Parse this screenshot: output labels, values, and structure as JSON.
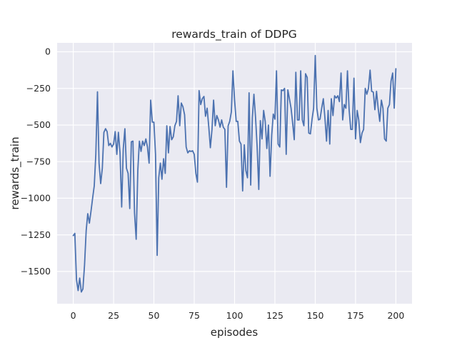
{
  "colors": {
    "figure_bg": "#ffffff",
    "axes_bg": "#eaeaf2",
    "grid": "#ffffff",
    "text": "#262626",
    "line": "#4c72b0"
  },
  "chart_data": {
    "type": "line",
    "title": "rewards_train of DDPG",
    "xlabel": "episodes",
    "ylabel": "rewards_train",
    "x_ticks": [
      0,
      25,
      50,
      75,
      100,
      125,
      150,
      175,
      200
    ],
    "y_ticks": [
      0,
      -250,
      -500,
      -750,
      -1000,
      -1250,
      -1500
    ],
    "xlim": [
      -10,
      210
    ],
    "ylim": [
      -1720,
      61
    ],
    "grid": true,
    "legend": "none",
    "series": [
      {
        "name": "rewards_train",
        "color": "#4c72b0",
        "x_start": 0,
        "x_step": 1,
        "values": [
          -1255,
          -1240,
          -1555,
          -1630,
          -1545,
          -1640,
          -1620,
          -1455,
          -1220,
          -1105,
          -1170,
          -1090,
          -1000,
          -915,
          -700,
          -273,
          -760,
          -900,
          -795,
          -550,
          -525,
          -545,
          -640,
          -625,
          -650,
          -630,
          -545,
          -700,
          -550,
          -690,
          -1060,
          -665,
          -525,
          -795,
          -830,
          -1070,
          -615,
          -610,
          -1100,
          -1280,
          -810,
          -610,
          -680,
          -610,
          -640,
          -595,
          -650,
          -760,
          -330,
          -480,
          -480,
          -700,
          -1390,
          -860,
          -760,
          -870,
          -730,
          -830,
          -505,
          -690,
          -510,
          -600,
          -580,
          -505,
          -475,
          -300,
          -505,
          -350,
          -375,
          -430,
          -650,
          -690,
          -676,
          -680,
          -676,
          -700,
          -830,
          -890,
          -265,
          -360,
          -320,
          -305,
          -440,
          -385,
          -515,
          -655,
          -530,
          -330,
          -505,
          -435,
          -465,
          -515,
          -465,
          -515,
          -530,
          -925,
          -505,
          -475,
          -410,
          -130,
          -330,
          -475,
          -475,
          -610,
          -630,
          -950,
          -635,
          -810,
          -860,
          -280,
          -910,
          -450,
          -290,
          -450,
          -650,
          -940,
          -470,
          -595,
          -400,
          -475,
          -660,
          -500,
          -850,
          -570,
          -425,
          -460,
          -130,
          -630,
          -650,
          -260,
          -265,
          -250,
          -700,
          -260,
          -320,
          -385,
          -485,
          -600,
          -140,
          -465,
          -465,
          -130,
          -465,
          -505,
          -150,
          -175,
          -555,
          -560,
          -465,
          -385,
          -25,
          -385,
          -465,
          -460,
          -385,
          -320,
          -450,
          -610,
          -400,
          -630,
          -320,
          -435,
          -300,
          -315,
          -300,
          -340,
          -145,
          -465,
          -360,
          -385,
          -130,
          -395,
          -530,
          -530,
          -180,
          -595,
          -400,
          -465,
          -620,
          -555,
          -530,
          -250,
          -290,
          -250,
          -125,
          -270,
          -275,
          -395,
          -270,
          -385,
          -475,
          -330,
          -385,
          -595,
          -610,
          -385,
          -360,
          -200,
          -145,
          -385,
          -115
        ]
      }
    ]
  }
}
